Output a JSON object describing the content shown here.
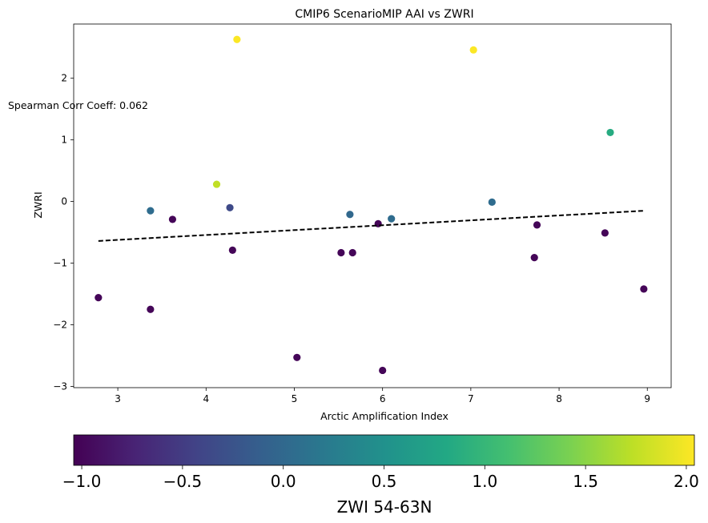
{
  "chart_data": {
    "type": "scatter",
    "title": "CMIP6 ScenarioMIP AAI vs ZWRI",
    "xlabel": "Arctic Amplification Index",
    "ylabel": "ZWRI",
    "xlim": [
      2.5,
      9.27
    ],
    "ylim": [
      -3.02,
      2.88
    ],
    "xticks": [
      "3",
      "4",
      "5",
      "6",
      "7",
      "8",
      "9"
    ],
    "yticks": [
      "−3",
      "−2",
      "−1",
      "0",
      "1",
      "2"
    ],
    "annotation": "Spearman Corr Coeff: 0.062",
    "colorbar": {
      "label": "ZWI 54-63N",
      "range": [
        -1.04,
        2.04
      ],
      "ticks": [
        "−1.0",
        "−0.5",
        "0.0",
        "0.5",
        "1.0",
        "1.5",
        "2.0"
      ],
      "colormap": "viridis"
    },
    "points": [
      {
        "x": 2.78,
        "y": -1.56,
        "c": -1.0
      },
      {
        "x": 3.37,
        "y": -0.15,
        "c": 0.05
      },
      {
        "x": 3.37,
        "y": -1.75,
        "c": -1.0
      },
      {
        "x": 3.62,
        "y": -0.29,
        "c": -1.0
      },
      {
        "x": 4.12,
        "y": 0.28,
        "c": 1.75
      },
      {
        "x": 4.27,
        "y": -0.1,
        "c": -0.35
      },
      {
        "x": 4.3,
        "y": -0.79,
        "c": -1.0
      },
      {
        "x": 4.35,
        "y": 2.63,
        "c": 2.03
      },
      {
        "x": 5.03,
        "y": -2.53,
        "c": -1.0
      },
      {
        "x": 5.53,
        "y": -0.83,
        "c": -1.0
      },
      {
        "x": 5.63,
        "y": -0.21,
        "c": 0.0
      },
      {
        "x": 5.66,
        "y": -0.83,
        "c": -1.0
      },
      {
        "x": 5.95,
        "y": -0.36,
        "c": -1.0
      },
      {
        "x": 6.0,
        "y": -2.74,
        "c": -1.0
      },
      {
        "x": 6.1,
        "y": -0.28,
        "c": 0.05
      },
      {
        "x": 7.03,
        "y": 2.46,
        "c": 2.03
      },
      {
        "x": 7.24,
        "y": -0.01,
        "c": 0.05
      },
      {
        "x": 7.72,
        "y": -0.91,
        "c": -1.0
      },
      {
        "x": 7.75,
        "y": -0.38,
        "c": -1.0
      },
      {
        "x": 8.52,
        "y": -0.51,
        "c": -1.0
      },
      {
        "x": 8.58,
        "y": 1.12,
        "c": 0.85
      },
      {
        "x": 8.96,
        "y": -1.42,
        "c": -1.0
      }
    ],
    "trendline": {
      "x": [
        2.78,
        8.96
      ],
      "y": [
        -0.64,
        -0.15
      ],
      "style": "dashed",
      "color": "#000000"
    }
  }
}
